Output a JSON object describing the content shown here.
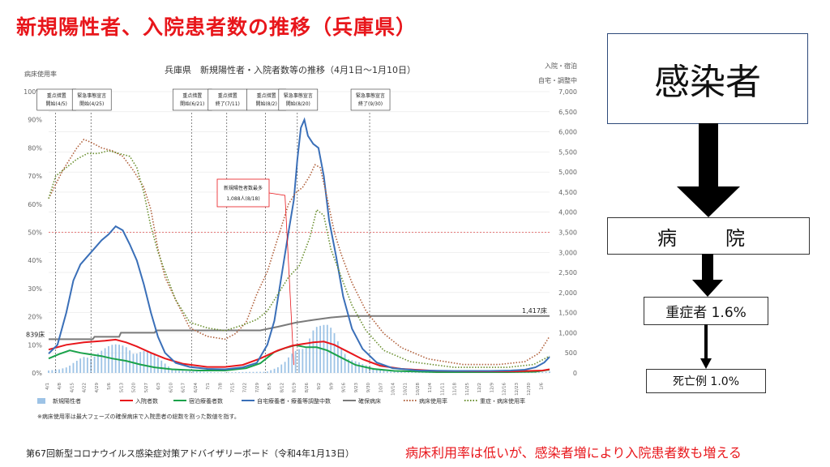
{
  "slide": {
    "title": "新規陽性者、入院患者数の推移（兵庫県）",
    "footer": "第67回新型コロナウイルス感染症対策アドバイザリーボード（令和4年1月13日）",
    "remark": "病床利用率は低いが、感染者増により入院患者数も増える"
  },
  "flow": {
    "infected": "感染者",
    "hospital": "病　院",
    "severe": "重症者 1.6%",
    "death": "死亡例 1.0%"
  },
  "chart_data": {
    "type": "line",
    "title": "兵庫県　新規陽性者・入院者数等の推移（4月1日～1月10日）",
    "ylabel_left": "病床使用率",
    "ylabel_right_1": "入院・宿泊",
    "ylabel_right_2": "自宅・調整中",
    "ylim_left": [
      0,
      100
    ],
    "ylim_right": [
      0,
      7000
    ],
    "left_ticks": [
      "0%",
      "10%",
      "20%",
      "30%",
      "40%",
      "50%",
      "60%",
      "70%",
      "80%",
      "90%",
      "100%"
    ],
    "right_ticks": [
      "0",
      "500",
      "1,000",
      "1,500",
      "2,000",
      "2,500",
      "3,000",
      "3,500",
      "4,000",
      "4,500",
      "5,000",
      "5,500",
      "6,000",
      "6,500",
      "7,000"
    ],
    "x_ticks": [
      "4/1",
      "4/8",
      "4/15",
      "4/22",
      "4/29",
      "5/6",
      "5/13",
      "5/20",
      "5/27",
      "6/3",
      "6/10",
      "6/17",
      "6/24",
      "7/1",
      "7/8",
      "7/15",
      "7/22",
      "7/29",
      "8/5",
      "8/12",
      "8/19",
      "8/26",
      "9/2",
      "9/9",
      "9/16",
      "9/23",
      "9/30",
      "10/7",
      "10/14",
      "10/21",
      "10/28",
      "11/4",
      "11/11",
      "11/18",
      "11/25",
      "12/2",
      "12/9",
      "12/16",
      "12/23",
      "12/30",
      "1/6"
    ],
    "x_range_days": [
      0,
      284
    ],
    "annotation_peak": {
      "title": "新規陽性者数最多",
      "value": "1,088人(8/18)",
      "day": 139
    },
    "bed_labels": {
      "start": "839床",
      "end": "1,417床"
    },
    "threshold_pct": 50,
    "events": [
      {
        "line1": "重点措置",
        "line2": "開始(4/5)",
        "day": 4
      },
      {
        "line1": "緊急事態宣言",
        "line2": "開始(4/25)",
        "day": 24
      },
      {
        "line1": "重点措置",
        "line2": "開始(6/21)",
        "day": 81
      },
      {
        "line1": "重点措置",
        "line2": "終了(7/11)",
        "day": 101
      },
      {
        "line1": "重点措置",
        "line2": "開始(8/2)",
        "day": 123
      },
      {
        "line1": "緊急事態宣言",
        "line2": "開始(8/20)",
        "day": 141
      },
      {
        "line1": "緊急事態宣言",
        "line2": "終了(9/30)",
        "day": 182
      }
    ],
    "legend": [
      "新規陽性者",
      "入院者数",
      "宿泊療養者数",
      "自宅療養者・療養等調整中数",
      "確保病床",
      "病床使用率",
      "重症・病床使用率"
    ],
    "colors": {
      "new": "#9dc3e6",
      "inpatient": "#e8161b",
      "hotel": "#1aa24a",
      "home": "#3a6fb8",
      "secured": "#7a7a7a",
      "occupancy": "#b0603b",
      "severe": "#6a8f2f"
    },
    "note": "※病床使用率は最大フェーズの確保病床で入院患者の総数を割った数値を指す。",
    "series_points": {
      "home": [
        [
          0,
          480
        ],
        [
          5,
          700
        ],
        [
          10,
          1500
        ],
        [
          14,
          2300
        ],
        [
          18,
          2700
        ],
        [
          22,
          2900
        ],
        [
          26,
          3100
        ],
        [
          30,
          3300
        ],
        [
          34,
          3450
        ],
        [
          38,
          3650
        ],
        [
          42,
          3550
        ],
        [
          46,
          3200
        ],
        [
          50,
          2800
        ],
        [
          54,
          2200
        ],
        [
          58,
          1500
        ],
        [
          62,
          900
        ],
        [
          66,
          500
        ],
        [
          72,
          250
        ],
        [
          80,
          150
        ],
        [
          90,
          100
        ],
        [
          100,
          90
        ],
        [
          110,
          140
        ],
        [
          118,
          250
        ],
        [
          124,
          700
        ],
        [
          128,
          1300
        ],
        [
          132,
          2400
        ],
        [
          136,
          3500
        ],
        [
          139,
          4300
        ],
        [
          141,
          5300
        ],
        [
          143,
          6100
        ],
        [
          145,
          6300
        ],
        [
          147,
          5900
        ],
        [
          150,
          5700
        ],
        [
          153,
          5600
        ],
        [
          156,
          4900
        ],
        [
          159,
          3800
        ],
        [
          163,
          2900
        ],
        [
          167,
          1900
        ],
        [
          172,
          1100
        ],
        [
          178,
          600
        ],
        [
          186,
          260
        ],
        [
          195,
          120
        ],
        [
          210,
          60
        ],
        [
          230,
          50
        ],
        [
          250,
          50
        ],
        [
          262,
          60
        ],
        [
          270,
          80
        ],
        [
          276,
          140
        ],
        [
          281,
          260
        ],
        [
          284,
          400
        ]
      ],
      "inpatient": [
        [
          0,
          580
        ],
        [
          10,
          700
        ],
        [
          20,
          760
        ],
        [
          26,
          780
        ],
        [
          32,
          800
        ],
        [
          38,
          830
        ],
        [
          44,
          760
        ],
        [
          50,
          660
        ],
        [
          58,
          500
        ],
        [
          66,
          360
        ],
        [
          76,
          230
        ],
        [
          90,
          150
        ],
        [
          100,
          150
        ],
        [
          110,
          200
        ],
        [
          120,
          360
        ],
        [
          130,
          560
        ],
        [
          138,
          680
        ],
        [
          144,
          720
        ],
        [
          150,
          760
        ],
        [
          156,
          780
        ],
        [
          162,
          700
        ],
        [
          170,
          520
        ],
        [
          178,
          340
        ],
        [
          188,
          180
        ],
        [
          200,
          100
        ],
        [
          220,
          50
        ],
        [
          245,
          40
        ],
        [
          265,
          40
        ],
        [
          280,
          60
        ],
        [
          284,
          90
        ]
      ],
      "hotel": [
        [
          0,
          360
        ],
        [
          6,
          470
        ],
        [
          12,
          560
        ],
        [
          18,
          500
        ],
        [
          24,
          460
        ],
        [
          30,
          420
        ],
        [
          36,
          360
        ],
        [
          44,
          300
        ],
        [
          52,
          210
        ],
        [
          60,
          140
        ],
        [
          70,
          90
        ],
        [
          85,
          60
        ],
        [
          100,
          60
        ],
        [
          112,
          120
        ],
        [
          120,
          240
        ],
        [
          128,
          520
        ],
        [
          134,
          620
        ],
        [
          140,
          690
        ],
        [
          146,
          640
        ],
        [
          152,
          640
        ],
        [
          158,
          560
        ],
        [
          166,
          380
        ],
        [
          174,
          200
        ],
        [
          184,
          100
        ],
        [
          196,
          50
        ],
        [
          220,
          20
        ],
        [
          260,
          20
        ],
        [
          276,
          30
        ],
        [
          284,
          80
        ]
      ],
      "secured": [
        [
          0,
          839
        ],
        [
          25,
          839
        ],
        [
          26,
          900
        ],
        [
          40,
          900
        ],
        [
          41,
          1000
        ],
        [
          60,
          1000
        ],
        [
          61,
          1060
        ],
        [
          100,
          1060
        ],
        [
          120,
          1060
        ],
        [
          130,
          1150
        ],
        [
          140,
          1250
        ],
        [
          150,
          1320
        ],
        [
          160,
          1380
        ],
        [
          170,
          1417
        ],
        [
          284,
          1417
        ]
      ],
      "occupancy": [
        [
          0,
          62
        ],
        [
          4,
          67
        ],
        [
          8,
          72
        ],
        [
          12,
          76
        ],
        [
          16,
          80
        ],
        [
          20,
          83
        ],
        [
          24,
          82
        ],
        [
          30,
          80
        ],
        [
          36,
          79
        ],
        [
          42,
          77
        ],
        [
          48,
          72
        ],
        [
          54,
          66
        ],
        [
          58,
          58
        ],
        [
          62,
          44
        ],
        [
          66,
          34
        ],
        [
          72,
          26
        ],
        [
          80,
          16
        ],
        [
          90,
          13
        ],
        [
          100,
          12
        ],
        [
          106,
          14
        ],
        [
          112,
          18
        ],
        [
          118,
          28
        ],
        [
          124,
          36
        ],
        [
          128,
          44
        ],
        [
          132,
          52
        ],
        [
          136,
          60
        ],
        [
          140,
          64
        ],
        [
          144,
          66
        ],
        [
          148,
          70
        ],
        [
          151,
          74
        ],
        [
          154,
          73
        ],
        [
          158,
          62
        ],
        [
          162,
          50
        ],
        [
          166,
          42
        ],
        [
          172,
          32
        ],
        [
          180,
          22
        ],
        [
          190,
          14
        ],
        [
          200,
          9
        ],
        [
          215,
          5
        ],
        [
          235,
          3
        ],
        [
          255,
          3
        ],
        [
          270,
          4
        ],
        [
          278,
          7
        ],
        [
          284,
          13
        ]
      ],
      "severe": [
        [
          0,
          62
        ],
        [
          4,
          70
        ],
        [
          10,
          73
        ],
        [
          16,
          76
        ],
        [
          22,
          78
        ],
        [
          28,
          78
        ],
        [
          34,
          79
        ],
        [
          40,
          78
        ],
        [
          46,
          77
        ],
        [
          50,
          73
        ],
        [
          54,
          64
        ],
        [
          58,
          52
        ],
        [
          62,
          43
        ],
        [
          66,
          36
        ],
        [
          72,
          26
        ],
        [
          80,
          18
        ],
        [
          90,
          16
        ],
        [
          100,
          15
        ],
        [
          110,
          17
        ],
        [
          118,
          19
        ],
        [
          124,
          22
        ],
        [
          130,
          28
        ],
        [
          136,
          34
        ],
        [
          142,
          38
        ],
        [
          148,
          48
        ],
        [
          152,
          58
        ],
        [
          156,
          56
        ],
        [
          160,
          44
        ],
        [
          166,
          34
        ],
        [
          172,
          24
        ],
        [
          180,
          15
        ],
        [
          190,
          8
        ],
        [
          205,
          4
        ],
        [
          230,
          2
        ],
        [
          260,
          2
        ],
        [
          275,
          3
        ],
        [
          284,
          6
        ]
      ],
      "new_daily_shape": "bars"
    }
  }
}
